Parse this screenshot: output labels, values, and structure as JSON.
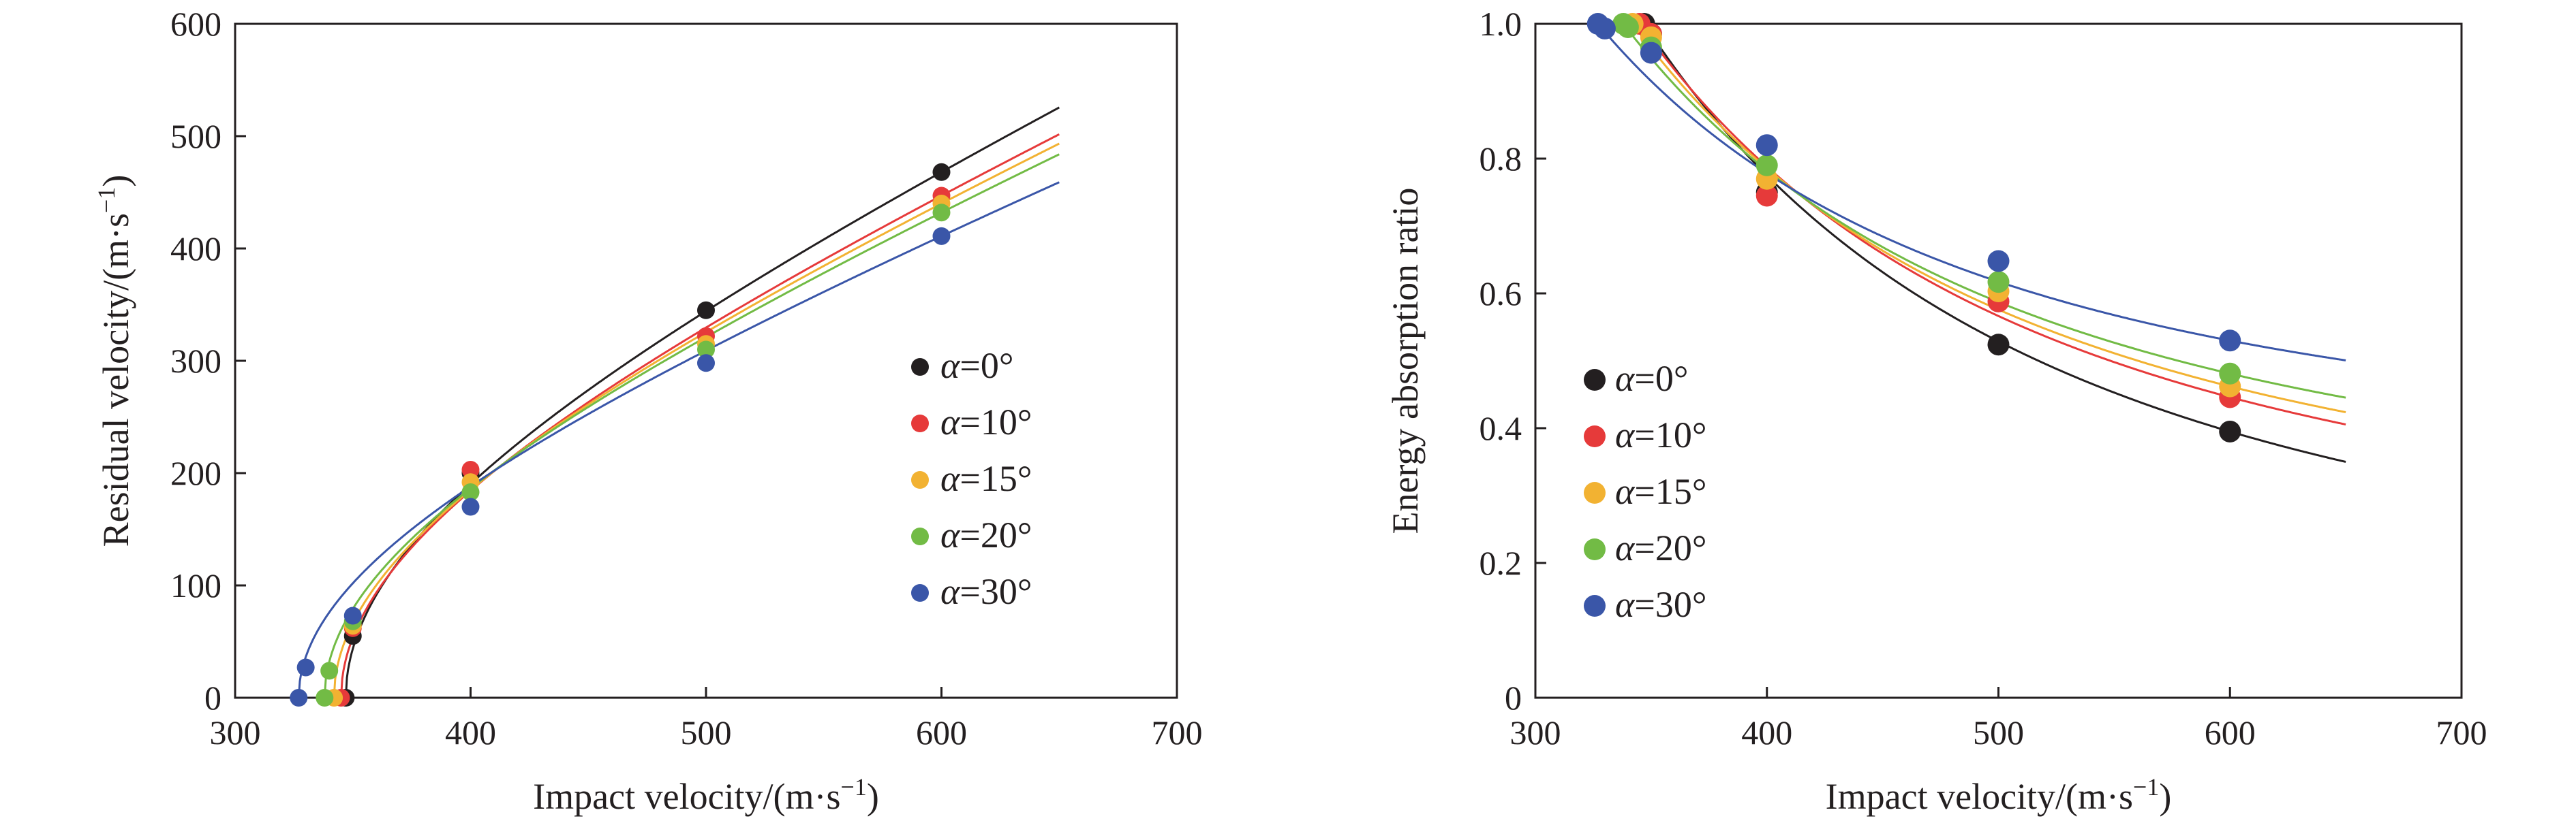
{
  "chart_data": [
    {
      "type": "scatter",
      "xlabel": "Impact velocity/(m·s",
      "xlabel_sup": "−1",
      "xlabel_end": ")",
      "ylabel": "Residual velocity/(m·s",
      "ylabel_sup": "−1",
      "ylabel_end": ")",
      "xlim": [
        300,
        700
      ],
      "ylim": [
        0,
        600
      ],
      "xticks": [
        300,
        400,
        500,
        600,
        700
      ],
      "yticks": [
        0,
        100,
        200,
        300,
        400,
        500,
        600
      ],
      "grid": false,
      "legend_position": "center-right",
      "series": [
        {
          "name_symbol": "α",
          "name_value": "=0°",
          "color": "#231f20",
          "points": [
            [
              347,
              0
            ],
            [
              350,
              55
            ],
            [
              400,
              200
            ],
            [
              500,
              345
            ],
            [
              600,
              468
            ]
          ],
          "fit": {
            "a": 1.4,
            "b": 0.8,
            "x0": 347
          }
        },
        {
          "name_symbol": "α",
          "name_value": "=10°",
          "color": "#e63a3a",
          "points": [
            [
              345,
              0
            ],
            [
              350,
              62
            ],
            [
              400,
              203
            ],
            [
              500,
              322
            ],
            [
              600,
              447
            ]
          ],
          "fit": {
            "a": 1.4,
            "b": 0.8,
            "x0": 345
          }
        },
        {
          "name_symbol": "α",
          "name_value": "=15°",
          "color": "#f2b232",
          "points": [
            [
              342,
              0
            ],
            [
              350,
              64
            ],
            [
              400,
              192
            ],
            [
              500,
              315
            ],
            [
              600,
              440
            ]
          ],
          "fit": {
            "a": 1.4,
            "b": 0.8,
            "x0": 342
          }
        },
        {
          "name_symbol": "α",
          "name_value": "=20°",
          "color": "#72bb45",
          "points": [
            [
              338,
              0
            ],
            [
              340,
              24
            ],
            [
              350,
              68
            ],
            [
              400,
              183
            ],
            [
              500,
              310
            ],
            [
              600,
              432
            ]
          ],
          "fit": {
            "a": 1.4,
            "b": 0.8,
            "x0": 338
          }
        },
        {
          "name_symbol": "α",
          "name_value": "=30°",
          "color": "#3a56a8",
          "points": [
            [
              327,
              0
            ],
            [
              330,
              27
            ],
            [
              350,
              73
            ],
            [
              400,
              170
            ],
            [
              500,
              298
            ],
            [
              600,
              411
            ]
          ],
          "fit": {
            "a": 1.4,
            "b": 0.8,
            "x0": 327
          }
        }
      ]
    },
    {
      "type": "scatter",
      "xlabel": "Impact velocity/(m·s",
      "xlabel_sup": "−1",
      "xlabel_end": ")",
      "ylabel": "Energy absorption ratio",
      "xlim": [
        300,
        700
      ],
      "ylim": [
        0,
        1.0
      ],
      "xticks": [
        300,
        400,
        500,
        600,
        700
      ],
      "yticks": [
        0,
        0.2,
        0.4,
        0.6,
        0.8,
        1.0
      ],
      "ytick_labels": [
        "0",
        "0.2",
        "0.4",
        "0.6",
        "0.8",
        "1.0"
      ],
      "grid": false,
      "legend_position": "lower-left",
      "series": [
        {
          "name_symbol": "α",
          "name_value": "=0°",
          "color": "#231f20",
          "points": [
            [
              347,
              1.0
            ],
            [
              350,
              0.985
            ],
            [
              400,
              0.75
            ],
            [
              500,
              0.524
            ],
            [
              600,
              0.395
            ]
          ],
          "fit": {
            "x0": 347
          }
        },
        {
          "name_symbol": "α",
          "name_value": "=10°",
          "color": "#e63a3a",
          "points": [
            [
              345,
              1.0
            ],
            [
              350,
              0.985
            ],
            [
              400,
              0.745
            ],
            [
              500,
              0.588
            ],
            [
              600,
              0.446
            ]
          ],
          "fit": {
            "x0": 345
          }
        },
        {
          "name_symbol": "α",
          "name_value": "=15°",
          "color": "#f2b232",
          "points": [
            [
              342,
              1.0
            ],
            [
              350,
              0.98
            ],
            [
              400,
              0.77
            ],
            [
              500,
              0.603
            ],
            [
              600,
              0.462
            ]
          ],
          "fit": {
            "x0": 342
          }
        },
        {
          "name_symbol": "α",
          "name_value": "=20°",
          "color": "#72bb45",
          "points": [
            [
              338,
              1.0
            ],
            [
              340,
              0.995
            ],
            [
              350,
              0.965
            ],
            [
              400,
              0.79
            ],
            [
              500,
              0.617
            ],
            [
              600,
              0.481
            ]
          ],
          "fit": {
            "x0": 338
          }
        },
        {
          "name_symbol": "α",
          "name_value": "=30°",
          "color": "#3a56a8",
          "points": [
            [
              327,
              1.0
            ],
            [
              330,
              0.993
            ],
            [
              350,
              0.957
            ],
            [
              400,
              0.82
            ],
            [
              500,
              0.648
            ],
            [
              600,
              0.53
            ]
          ],
          "fit": {
            "x0": 327
          }
        }
      ]
    }
  ]
}
